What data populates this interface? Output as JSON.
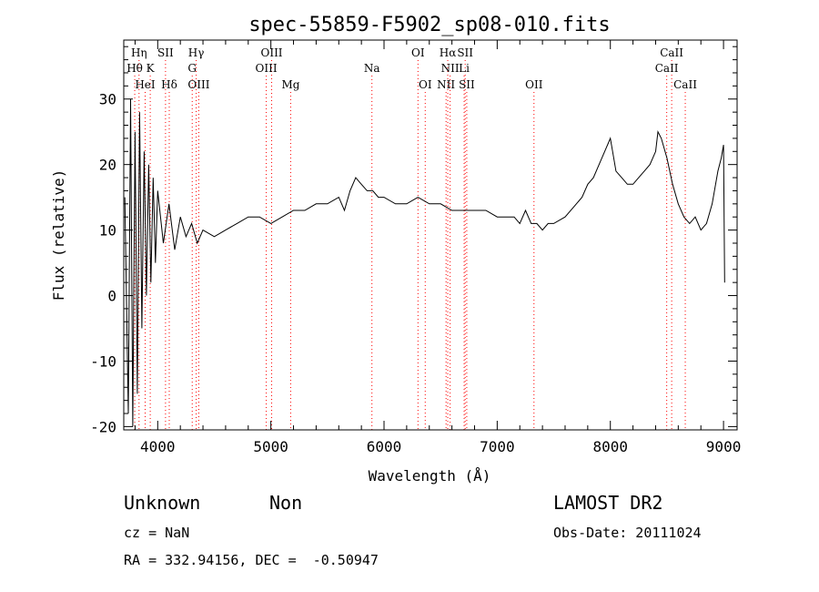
{
  "info": {
    "class_label": "Unknown",
    "subclass_label": "Non",
    "survey": "LAMOST DR2",
    "cz": "cz = NaN",
    "obs_date": "Obs-Date: 20111024",
    "radec": "RA = 332.94156, DEC =  -0.50947"
  },
  "chart_data": {
    "type": "line",
    "title": "spec-55859-F5902_sp08-010.fits",
    "xlabel": "Wavelength (Å)",
    "ylabel": "Flux (relative)",
    "xlim": [
      3700,
      9120
    ],
    "ylim": [
      -20.5,
      39
    ],
    "xticks": [
      4000,
      5000,
      6000,
      7000,
      8000,
      9000
    ],
    "yticks": [
      -20,
      -10,
      0,
      10,
      20,
      30
    ],
    "grid": false,
    "line_color": "#000000",
    "marker_color": "#ff0000",
    "series": [
      {
        "x": [
          3710,
          3740,
          3760,
          3780,
          3800,
          3820,
          3840,
          3860,
          3880,
          3900,
          3920,
          3940,
          3960,
          3980,
          4000,
          4050,
          4100,
          4150,
          4200,
          4250,
          4300,
          4350,
          4400,
          4500,
          4600,
          4700,
          4800,
          4900,
          5000,
          5100,
          5200,
          5300,
          5400,
          5500,
          5600,
          5650,
          5700,
          5750,
          5800,
          5850,
          5900,
          5950,
          6000,
          6100,
          6200,
          6300,
          6400,
          6500,
          6600,
          6700,
          6800,
          6900,
          7000,
          7100,
          7150,
          7200,
          7250,
          7300,
          7350,
          7400,
          7450,
          7500,
          7600,
          7700,
          7750,
          7800,
          7850,
          7900,
          7950,
          8000,
          8020,
          8050,
          8100,
          8150,
          8200,
          8250,
          8300,
          8350,
          8400,
          8420,
          8450,
          8500,
          8550,
          8600,
          8650,
          8700,
          8750,
          8800,
          8850,
          8900,
          8950,
          8980,
          9000,
          9010
        ],
        "y": [
          15,
          -18,
          30,
          -20,
          25,
          -15,
          28,
          -5,
          22,
          0,
          20,
          2,
          18,
          5,
          16,
          8,
          14,
          7,
          12,
          9,
          11,
          8,
          10,
          9,
          10,
          11,
          12,
          12,
          11,
          12,
          13,
          13,
          14,
          14,
          15,
          13,
          16,
          18,
          17,
          16,
          16,
          15,
          15,
          14,
          14,
          15,
          14,
          14,
          13,
          13,
          13,
          13,
          12,
          12,
          12,
          11,
          13,
          11,
          11,
          10,
          11,
          11,
          12,
          14,
          15,
          17,
          18,
          20,
          22,
          24,
          22,
          19,
          18,
          17,
          17,
          18,
          19,
          20,
          22,
          25,
          24,
          21,
          17,
          14,
          12,
          11,
          12,
          10,
          11,
          14,
          19,
          21,
          23,
          2
        ]
      }
    ],
    "line_ids": [
      {
        "label": "Hη",
        "x": 3835,
        "row": 0
      },
      {
        "label": "Hθ",
        "x": 3797,
        "row": 1
      },
      {
        "label": "K",
        "x": 3934,
        "row": 1
      },
      {
        "label": "HeI",
        "x": 3889,
        "row": 2
      },
      {
        "label": "SII",
        "x": 4069,
        "row": 0
      },
      {
        "label": "Hδ",
        "x": 4102,
        "row": 2
      },
      {
        "label": "Hγ",
        "x": 4340,
        "row": 0
      },
      {
        "label": "G",
        "x": 4305,
        "row": 1
      },
      {
        "label": "OIII",
        "x": 4363,
        "row": 2
      },
      {
        "label": "OIII",
        "x": 5007,
        "row": 0
      },
      {
        "label": "OIII",
        "x": 4959,
        "row": 1
      },
      {
        "label": "Mg",
        "x": 5175,
        "row": 2
      },
      {
        "label": "Na",
        "x": 5893,
        "row": 1
      },
      {
        "label": "OI",
        "x": 6300,
        "row": 0
      },
      {
        "label": "OI",
        "x": 6364,
        "row": 2
      },
      {
        "label": "Hα",
        "x": 6563,
        "row": 0
      },
      {
        "label": "NII",
        "x": 6584,
        "row": 1
      },
      {
        "label": "SII",
        "x": 6717,
        "row": 0
      },
      {
        "label": "Li",
        "x": 6708,
        "row": 1
      },
      {
        "label": "NII",
        "x": 6548,
        "row": 2
      },
      {
        "label": "SII",
        "x": 6731,
        "row": 2
      },
      {
        "label": "OII",
        "x": 7325,
        "row": 2
      },
      {
        "label": "CaII",
        "x": 8542,
        "row": 0
      },
      {
        "label": "CaII",
        "x": 8498,
        "row": 1
      },
      {
        "label": "CaII",
        "x": 8662,
        "row": 2
      }
    ]
  }
}
